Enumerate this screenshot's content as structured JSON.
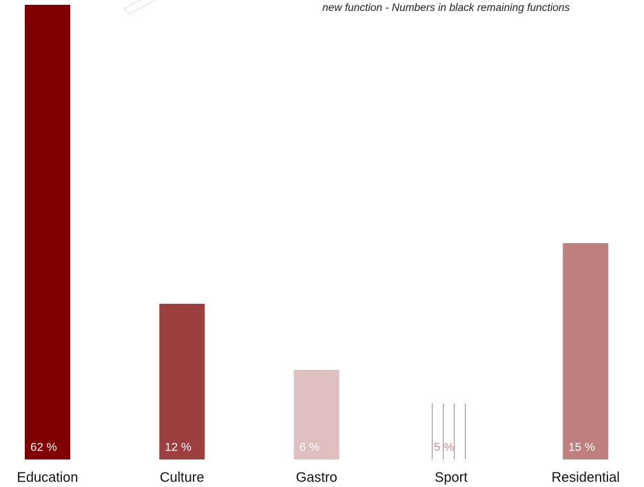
{
  "chart_data": {
    "type": "bar",
    "subtitle": "new function - Numbers in black remaining functions",
    "categories": [
      "Education",
      "Culture",
      "Gastro",
      "Sport",
      "Residential"
    ],
    "values": [
      660,
      226,
      130,
      81,
      314
    ],
    "shares": [
      62,
      12,
      6,
      5,
      15
    ],
    "share_labels": [
      "62 %",
      "12 %",
      "6 %",
      "5 %",
      "15 %"
    ],
    "colors": [
      "#800000",
      "#9e3f3f",
      "#e0bfc1",
      "hatch",
      "#bf7f7f"
    ],
    "hatch_color": "#c9737a",
    "label_colors": [
      "#ffffff",
      "#ffffff",
      "#ffffff",
      "#d08a8f",
      "#ffffff"
    ]
  }
}
